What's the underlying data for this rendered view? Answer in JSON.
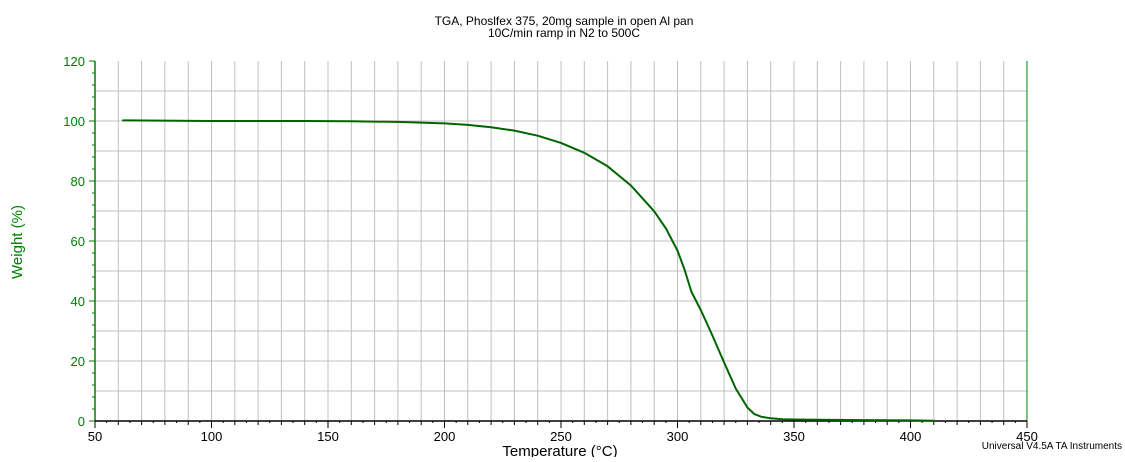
{
  "chart_data": {
    "type": "line",
    "title": "TGA, Phoslfex 375, 20mg sample in open Al pan",
    "subtitle": "10C/min ramp in N2 to 500C",
    "xlabel": "Temperature (°C)",
    "ylabel": "Weight (%)",
    "xlim": [
      50,
      450
    ],
    "ylim": [
      0,
      120
    ],
    "x_ticks": [
      50,
      100,
      150,
      200,
      250,
      300,
      350,
      400,
      450
    ],
    "y_ticks": [
      0,
      20,
      40,
      60,
      80,
      100,
      120
    ],
    "grid": true,
    "colors": {
      "axis": "#008000",
      "line": "#006400",
      "grid": "#c0c0c0",
      "text": "#000000"
    },
    "series": [
      {
        "x": [
          62,
          85,
          100,
          120,
          140,
          160,
          180,
          200,
          210,
          220,
          230,
          240,
          250,
          260,
          270,
          280,
          290,
          295,
          300,
          303,
          306,
          310,
          315,
          320,
          325,
          330,
          333,
          336,
          340,
          345,
          350,
          360,
          380,
          400,
          410
        ],
        "y": [
          100.2,
          100.1,
          100.0,
          100.0,
          100.0,
          99.9,
          99.7,
          99.2,
          98.7,
          97.9,
          96.8,
          95.1,
          92.7,
          89.4,
          84.9,
          78.5,
          69.9,
          64.2,
          56.8,
          50.5,
          43.0,
          37.0,
          28.5,
          19.5,
          10.8,
          4.5,
          2.3,
          1.4,
          0.9,
          0.6,
          0.5,
          0.4,
          0.3,
          0.2,
          0.1
        ]
      }
    ],
    "footer": "Universal V4.5A TA Instruments"
  }
}
